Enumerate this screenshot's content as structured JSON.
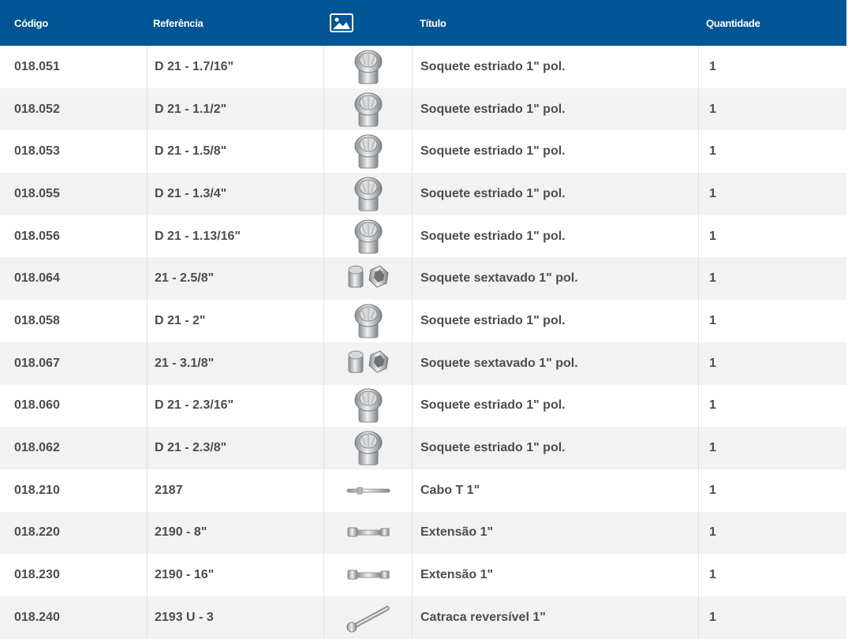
{
  "columns": {
    "codigo": "Código",
    "referencia": "Referência",
    "image_icon": "image-icon",
    "titulo": "Título",
    "quantidade": "Quantidade"
  },
  "rows": [
    {
      "codigo": "018.051",
      "referencia": "D 21 - 1.7/16\"",
      "titulo": "Soquete estriado 1\" pol.",
      "quantidade": "1",
      "image": "socket-12pt"
    },
    {
      "codigo": "018.052",
      "referencia": "D 21 - 1.1/2\"",
      "titulo": "Soquete estriado 1\" pol.",
      "quantidade": "1",
      "image": "socket-12pt"
    },
    {
      "codigo": "018.053",
      "referencia": "D 21 - 1.5/8\"",
      "titulo": "Soquete estriado 1\" pol.",
      "quantidade": "1",
      "image": "socket-12pt"
    },
    {
      "codigo": "018.055",
      "referencia": "D 21 - 1.3/4\"",
      "titulo": "Soquete estriado 1\" pol.",
      "quantidade": "1",
      "image": "socket-12pt"
    },
    {
      "codigo": "018.056",
      "referencia": "D 21 - 1.13/16\"",
      "titulo": "Soquete estriado 1\" pol.",
      "quantidade": "1",
      "image": "socket-12pt"
    },
    {
      "codigo": "018.064",
      "referencia": "21 - 2.5/8\"",
      "titulo": "Soquete sextavado 1\" pol.",
      "quantidade": "1",
      "image": "socket-hex"
    },
    {
      "codigo": "018.058",
      "referencia": "D 21 - 2\"",
      "titulo": "Soquete estriado 1\" pol.",
      "quantidade": "1",
      "image": "socket-12pt"
    },
    {
      "codigo": "018.067",
      "referencia": "21 - 3.1/8\"",
      "titulo": "Soquete sextavado 1\" pol.",
      "quantidade": "1",
      "image": "socket-hex"
    },
    {
      "codigo": "018.060",
      "referencia": "D 21 - 2.3/16\"",
      "titulo": "Soquete estriado 1\" pol.",
      "quantidade": "1",
      "image": "socket-12pt"
    },
    {
      "codigo": "018.062",
      "referencia": "D 21 - 2.3/8\"",
      "titulo": "Soquete estriado 1\" pol.",
      "quantidade": "1",
      "image": "socket-12pt"
    },
    {
      "codigo": "018.210",
      "referencia": "2187",
      "titulo": "Cabo T 1\"",
      "quantidade": "1",
      "image": "t-handle"
    },
    {
      "codigo": "018.220",
      "referencia": "2190 - 8\"",
      "titulo": "Extensão 1\"",
      "quantidade": "1",
      "image": "extension"
    },
    {
      "codigo": "018.230",
      "referencia": "2190 - 16\"",
      "titulo": "Extensão 1\"",
      "quantidade": "1",
      "image": "extension"
    },
    {
      "codigo": "018.240",
      "referencia": "2193 U - 3",
      "titulo": "Catraca reversível 1\"",
      "quantidade": "1",
      "image": "ratchet"
    }
  ],
  "colors": {
    "header_bg": "#005595",
    "header_text": "#ffffff",
    "row_alt_bg": "#f2f2f2",
    "text": "#4d4d4d"
  }
}
